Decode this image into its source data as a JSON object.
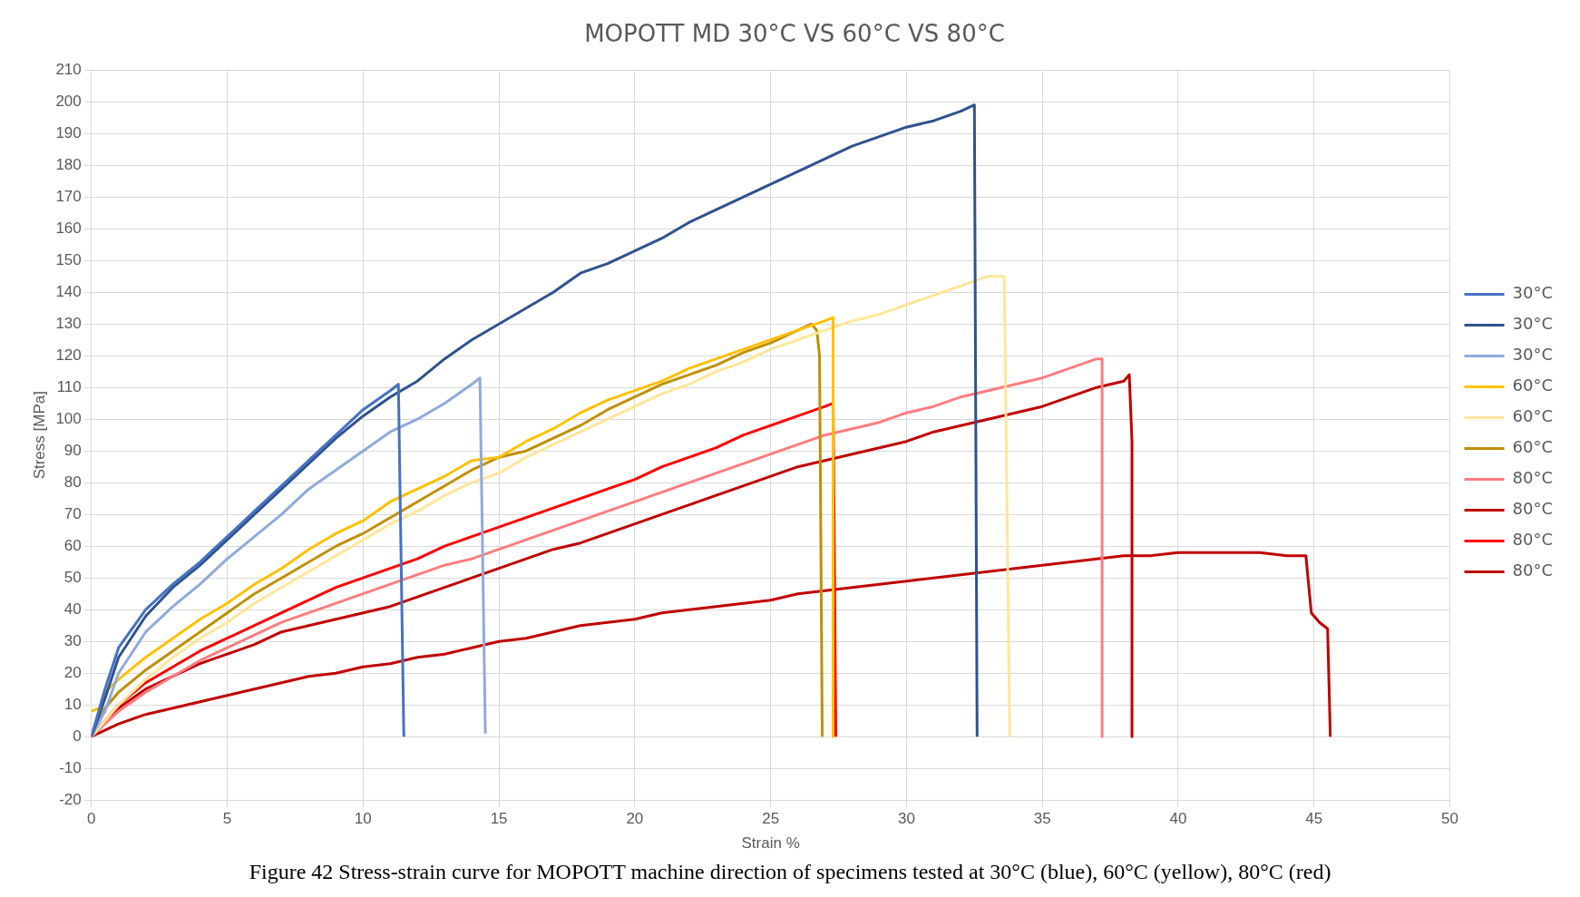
{
  "chart_data": {
    "type": "line",
    "title": "MOPOTT MD 30°C VS 60°C VS 80°C",
    "xlabel": "Strain %",
    "ylabel": "Stress [MPa]",
    "annotations": [
      "Figure 42 Stress-strain curve for MOPOTT machine direction of specimens tested at 30°C (blue), 60°C (yellow), 80°C (red)"
    ],
    "xlim": [
      0,
      50
    ],
    "xticks": [
      0,
      5,
      10,
      15,
      20,
      25,
      30,
      35,
      40,
      45,
      50
    ],
    "ylim": [
      -20,
      210
    ],
    "yticks": [
      -20,
      -10,
      0,
      10,
      20,
      30,
      40,
      50,
      60,
      70,
      80,
      90,
      100,
      110,
      120,
      130,
      140,
      150,
      160,
      170,
      180,
      190,
      200,
      210
    ],
    "grid": true,
    "legend": "right",
    "marker": "none",
    "line_style": "solid",
    "series": [
      {
        "name": "30°C",
        "color": "#4472c4",
        "x": [
          0,
          0.5,
          1,
          2,
          3,
          4,
          5,
          6,
          7,
          8,
          9,
          10,
          11,
          11.3,
          11.5
        ],
        "values": [
          0,
          15,
          28,
          40,
          48,
          55,
          63,
          71,
          79,
          87,
          95,
          103,
          109,
          111,
          0
        ]
      },
      {
        "name": "30°C",
        "color": "#2f528f",
        "x": [
          0,
          0.5,
          1,
          2,
          3,
          4,
          5,
          6,
          7,
          8,
          9,
          10,
          11,
          12,
          13,
          14,
          15,
          16,
          17,
          18,
          19,
          20,
          21,
          22,
          23,
          24,
          25,
          26,
          27,
          28,
          29,
          30,
          31,
          32,
          32.5,
          32.6
        ],
        "values": [
          0,
          12,
          25,
          38,
          47,
          54,
          62,
          70,
          78,
          86,
          94,
          101,
          107,
          112,
          119,
          125,
          130,
          135,
          140,
          146,
          149,
          153,
          157,
          162,
          166,
          170,
          174,
          178,
          182,
          186,
          189,
          192,
          194,
          197,
          199,
          0
        ]
      },
      {
        "name": "30°C",
        "color": "#8faadc",
        "x": [
          0,
          0.5,
          1,
          2,
          3,
          4,
          5,
          6,
          7,
          8,
          9,
          10,
          11,
          12,
          13,
          14,
          14.3,
          14.5
        ],
        "values": [
          0,
          8,
          20,
          33,
          41,
          48,
          56,
          63,
          70,
          78,
          84,
          90,
          96,
          100,
          105,
          111,
          113,
          1
        ]
      },
      {
        "name": "60°C",
        "color": "#ffc000",
        "x": [
          0,
          0.3,
          0.5,
          1,
          2,
          3,
          4,
          5,
          6,
          7,
          8,
          9,
          10,
          11,
          12,
          13,
          14,
          15,
          16,
          17,
          18,
          19,
          20,
          21,
          22,
          23,
          24,
          25,
          26,
          27,
          27.3,
          27.3
        ],
        "values": [
          8,
          9,
          14,
          18,
          25,
          31,
          37,
          42,
          48,
          53,
          59,
          64,
          68,
          74,
          78,
          82,
          87,
          88,
          93,
          97,
          102,
          106,
          109,
          112,
          116,
          119,
          122,
          125,
          128,
          131,
          132,
          0
        ]
      },
      {
        "name": "60°C",
        "color": "#ffe699",
        "x": [
          0,
          1,
          2,
          3,
          4,
          5,
          6,
          7,
          8,
          9,
          10,
          11,
          12,
          13,
          14,
          15,
          16,
          17,
          18,
          19,
          20,
          21,
          22,
          23,
          24,
          25,
          26,
          27,
          28,
          29,
          30,
          31,
          32,
          33,
          33.6,
          33.8
        ],
        "values": [
          0,
          10,
          18,
          25,
          31,
          36,
          42,
          47,
          52,
          57,
          62,
          67,
          71,
          76,
          80,
          83,
          88,
          92,
          96,
          100,
          104,
          108,
          111,
          115,
          118,
          122,
          125,
          128,
          131,
          133,
          136,
          139,
          142,
          145,
          145,
          0
        ]
      },
      {
        "name": "60°C",
        "color": "#bf9000",
        "x": [
          0,
          0.5,
          1,
          2,
          3,
          4,
          5,
          6,
          7,
          8,
          9,
          10,
          11,
          12,
          13,
          14,
          15,
          16,
          17,
          18,
          19,
          20,
          21,
          22,
          23,
          24,
          25,
          26,
          26.5,
          26.7,
          26.8,
          26.9
        ],
        "values": [
          0,
          9,
          14,
          21,
          27,
          33,
          39,
          45,
          50,
          55,
          60,
          64,
          69,
          74,
          79,
          84,
          88,
          90,
          94,
          98,
          103,
          107,
          111,
          114,
          117,
          121,
          124,
          128,
          130,
          128,
          120,
          0
        ]
      },
      {
        "name": "80°C",
        "color": "#ff7c80",
        "x": [
          0,
          1,
          2,
          3,
          4,
          5,
          6,
          7,
          8,
          9,
          10,
          11,
          12,
          13,
          14,
          15,
          16,
          17,
          18,
          19,
          20,
          21,
          22,
          23,
          24,
          25,
          26,
          27,
          28,
          29,
          30,
          31,
          32,
          33,
          34,
          35,
          36,
          37,
          37.2,
          37.2
        ],
        "values": [
          0,
          8,
          14,
          19,
          24,
          28,
          32,
          36,
          39,
          42,
          45,
          48,
          51,
          54,
          56,
          59,
          62,
          65,
          68,
          71,
          74,
          77,
          80,
          83,
          86,
          89,
          92,
          95,
          97,
          99,
          102,
          104,
          107,
          109,
          111,
          113,
          116,
          119,
          119,
          0
        ]
      },
      {
        "name": "80°C",
        "color": "#c00000",
        "x": [
          0,
          1,
          2,
          3,
          4,
          5,
          6,
          7,
          8,
          9,
          10,
          11,
          12,
          13,
          14,
          15,
          16,
          17,
          18,
          19,
          20,
          21,
          22,
          23,
          24,
          25,
          26,
          27,
          28,
          29,
          30,
          31,
          32,
          33,
          34,
          35,
          36,
          37,
          38,
          38.2,
          38.3,
          38.3
        ],
        "values": [
          0,
          9,
          15,
          19,
          23,
          26,
          29,
          33,
          35,
          37,
          39,
          41,
          44,
          47,
          50,
          53,
          56,
          59,
          61,
          64,
          67,
          70,
          73,
          76,
          79,
          82,
          85,
          87,
          89,
          91,
          93,
          96,
          98,
          100,
          102,
          104,
          107,
          110,
          112,
          114,
          93,
          0
        ]
      },
      {
        "name": "80°C",
        "color": "#ff0000",
        "x": [
          0,
          1,
          2,
          3,
          4,
          5,
          6,
          7,
          8,
          9,
          10,
          11,
          12,
          13,
          14,
          15,
          16,
          17,
          18,
          19,
          20,
          21,
          22,
          23,
          24,
          25,
          26,
          27,
          27.3,
          27.4
        ],
        "values": [
          0,
          10,
          17,
          22,
          27,
          31,
          35,
          39,
          43,
          47,
          50,
          53,
          56,
          60,
          63,
          66,
          69,
          72,
          75,
          78,
          81,
          85,
          88,
          91,
          95,
          98,
          101,
          104,
          105,
          0
        ]
      },
      {
        "name": "80°C",
        "color": "#c00000",
        "x": [
          0,
          1,
          2,
          3,
          4,
          5,
          6,
          7,
          8,
          9,
          10,
          11,
          12,
          13,
          14,
          15,
          16,
          17,
          18,
          19,
          20,
          21,
          22,
          23,
          24,
          25,
          26,
          27,
          28,
          29,
          30,
          31,
          32,
          33,
          34,
          35,
          36,
          37,
          38,
          39,
          40,
          41,
          42,
          43,
          44,
          44.7,
          44.9,
          45.2,
          45.5,
          45.6
        ],
        "values": [
          0,
          4,
          7,
          9,
          11,
          13,
          15,
          17,
          19,
          20,
          22,
          23,
          25,
          26,
          28,
          30,
          31,
          33,
          35,
          36,
          37,
          39,
          40,
          41,
          42,
          43,
          45,
          46,
          47,
          48,
          49,
          50,
          51,
          52,
          53,
          54,
          55,
          56,
          57,
          57,
          58,
          58,
          58,
          58,
          57,
          57,
          39,
          36,
          34,
          0
        ]
      }
    ]
  }
}
